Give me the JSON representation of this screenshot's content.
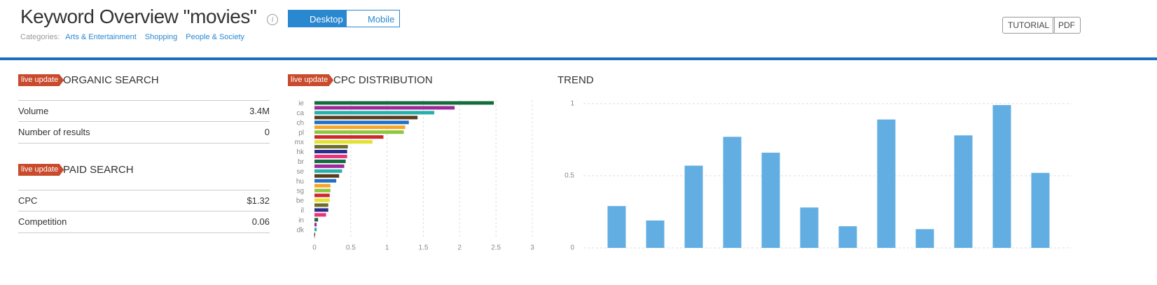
{
  "header": {
    "title": "Keyword Overview \"movies\"",
    "info": "i",
    "tabs": [
      "Desktop",
      "Mobile"
    ],
    "categories_label": "Categories:",
    "categories": [
      "Arts & Entertainment",
      "Shopping",
      "People & Society"
    ],
    "buttons": [
      "TUTORIAL",
      "PDF"
    ]
  },
  "organic": {
    "badge": "live update",
    "title": "ORGANIC SEARCH",
    "rows": [
      [
        "Volume",
        "3.4M"
      ],
      [
        "Number of results",
        "0"
      ]
    ]
  },
  "paid": {
    "badge": "live update",
    "title": "PAID SEARCH",
    "rows": [
      [
        "CPC",
        "$1.32"
      ],
      [
        "Competition",
        "0.06"
      ]
    ]
  },
  "cpc_badge": "live update",
  "chart_data": [
    {
      "type": "hbar",
      "title": "CPC DISTRIBUTION",
      "categories": [
        "ie",
        null,
        "ca",
        null,
        "ch",
        null,
        "pl",
        null,
        "mx",
        null,
        "hk",
        null,
        "br",
        null,
        "se",
        null,
        "hu",
        null,
        "sg",
        null,
        "be",
        null,
        "il",
        null,
        "in",
        null,
        "dk",
        null
      ],
      "values": [
        2.47,
        1.93,
        1.65,
        1.42,
        1.3,
        1.25,
        1.23,
        0.95,
        0.8,
        0.46,
        0.45,
        0.45,
        0.43,
        0.41,
        0.38,
        0.34,
        0.3,
        0.22,
        0.22,
        0.21,
        0.21,
        0.19,
        0.19,
        0.16,
        0.05,
        0.03,
        0.03,
        0.01
      ],
      "colors": [
        "#136b3e",
        "#9c2a98",
        "#27b0ab",
        "#5b3b1d",
        "#1f6fc5",
        "#f5a623",
        "#8dc63f",
        "#d0262e",
        "#e2e234",
        "#6e6e2c",
        "#2c2c8c",
        "#e8347a",
        "#136b3e",
        "#9c2a98",
        "#27b0ab",
        "#5b3b1d",
        "#1f6fc5",
        "#f5a623",
        "#8dc63f",
        "#d0262e",
        "#e2e234",
        "#6e6e2c",
        "#2c2c8c",
        "#e8347a",
        "#136b3e",
        "#9c2a98",
        "#27b0ab",
        "#5b3b1d"
      ],
      "xlim": [
        0,
        3
      ],
      "xticks": [
        0,
        0.5,
        1,
        1.5,
        2,
        2.5,
        3
      ],
      "grid": true
    },
    {
      "type": "bar",
      "title": "TREND",
      "values": [
        0.29,
        0.19,
        0.57,
        0.77,
        0.66,
        0.28,
        0.15,
        0.89,
        0.13,
        0.78,
        0.99,
        0.52
      ],
      "color": "#62aee2",
      "ylim": [
        0,
        1
      ],
      "yticks": [
        0,
        0.5,
        1
      ],
      "grid": true
    }
  ]
}
